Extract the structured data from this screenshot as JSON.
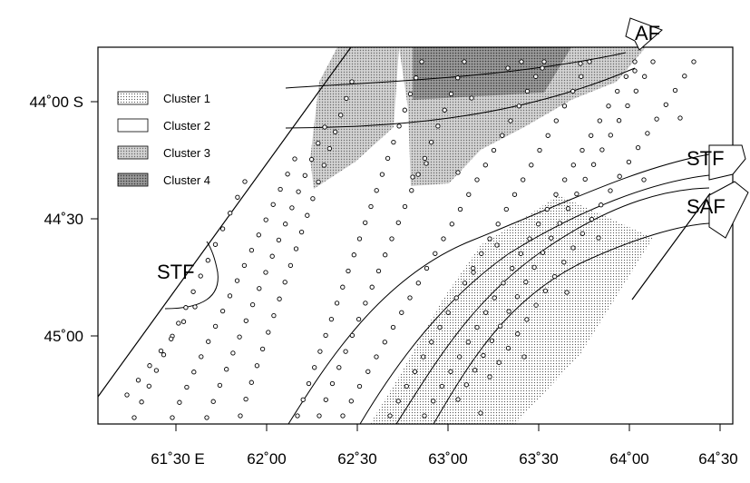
{
  "map": {
    "x_tick_labels": [
      "61˚30 E",
      "62˚00",
      "62˚30",
      "63˚00",
      "63˚30",
      "64˚00",
      "64˚30"
    ],
    "y_tick_labels": [
      "44˚00 S",
      "44˚30",
      "45˚00"
    ],
    "legend": [
      {
        "label": "Cluster 1",
        "fill": "dots"
      },
      {
        "label": "Cluster 2",
        "fill": "white"
      },
      {
        "label": "Cluster 3",
        "fill": "light-gray-dots"
      },
      {
        "label": "Cluster 4",
        "fill": "dark-gray"
      }
    ],
    "fronts": {
      "af": "AF",
      "stf_east": "STF",
      "saf": "SAF",
      "stf_west": "STF"
    }
  }
}
